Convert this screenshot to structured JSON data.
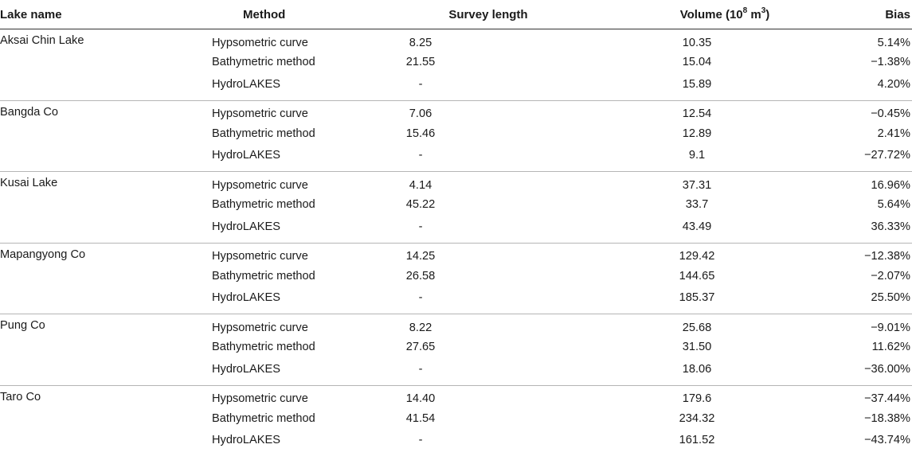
{
  "headers": {
    "lake": "Lake name",
    "method": "Method",
    "survey": "Survey length",
    "volume_prefix": "Volume (10",
    "volume_exp": "8",
    "volume_mid": " m",
    "volume_exp2": "3",
    "volume_suffix": ")",
    "bias": "Bias"
  },
  "lakes": [
    {
      "name": "Aksai Chin Lake",
      "rows": [
        {
          "method": "Hypsometric curve",
          "survey": "8.25",
          "volume": "10.35",
          "bias": "5.14%"
        },
        {
          "method": "Bathymetric method",
          "survey": "21.55",
          "volume": "15.04",
          "bias": "−1.38%"
        },
        {
          "method": "HydroLAKES",
          "survey": "-",
          "volume": "15.89",
          "bias": "4.20%"
        }
      ]
    },
    {
      "name": "Bangda Co",
      "rows": [
        {
          "method": "Hypsometric curve",
          "survey": "7.06",
          "volume": "12.54",
          "bias": "−0.45%"
        },
        {
          "method": "Bathymetric method",
          "survey": "15.46",
          "volume": "12.89",
          "bias": "2.41%"
        },
        {
          "method": "HydroLAKES",
          "survey": "-",
          "volume": "9.1",
          "bias": "−27.72%"
        }
      ]
    },
    {
      "name": "Kusai Lake",
      "rows": [
        {
          "method": "Hypsometric curve",
          "survey": "4.14",
          "volume": "37.31",
          "bias": "16.96%"
        },
        {
          "method": "Bathymetric method",
          "survey": "45.22",
          "volume": "33.7",
          "bias": "5.64%"
        },
        {
          "method": "HydroLAKES",
          "survey": "-",
          "volume": "43.49",
          "bias": "36.33%"
        }
      ]
    },
    {
      "name": "Mapangyong Co",
      "rows": [
        {
          "method": "Hypsometric curve",
          "survey": "14.25",
          "volume": "129.42",
          "bias": "−12.38%"
        },
        {
          "method": "Bathymetric method",
          "survey": "26.58",
          "volume": "144.65",
          "bias": "−2.07%"
        },
        {
          "method": "HydroLAKES",
          "survey": "-",
          "volume": "185.37",
          "bias": "25.50%"
        }
      ]
    },
    {
      "name": "Pung Co",
      "rows": [
        {
          "method": "Hypsometric curve",
          "survey": "8.22",
          "volume": "25.68",
          "bias": "−9.01%"
        },
        {
          "method": "Bathymetric method",
          "survey": "27.65",
          "volume": "31.50",
          "bias": "11.62%"
        },
        {
          "method": "HydroLAKES",
          "survey": "-",
          "volume": "18.06",
          "bias": "−36.00%"
        }
      ]
    },
    {
      "name": "Taro Co",
      "rows": [
        {
          "method": "Hypsometric curve",
          "survey": "14.40",
          "volume": "179.6",
          "bias": "−37.44%"
        },
        {
          "method": "Bathymetric method",
          "survey": "41.54",
          "volume": "234.32",
          "bias": "−18.38%"
        },
        {
          "method": "HydroLAKES",
          "survey": "-",
          "volume": "161.52",
          "bias": "−43.74%"
        }
      ]
    }
  ]
}
